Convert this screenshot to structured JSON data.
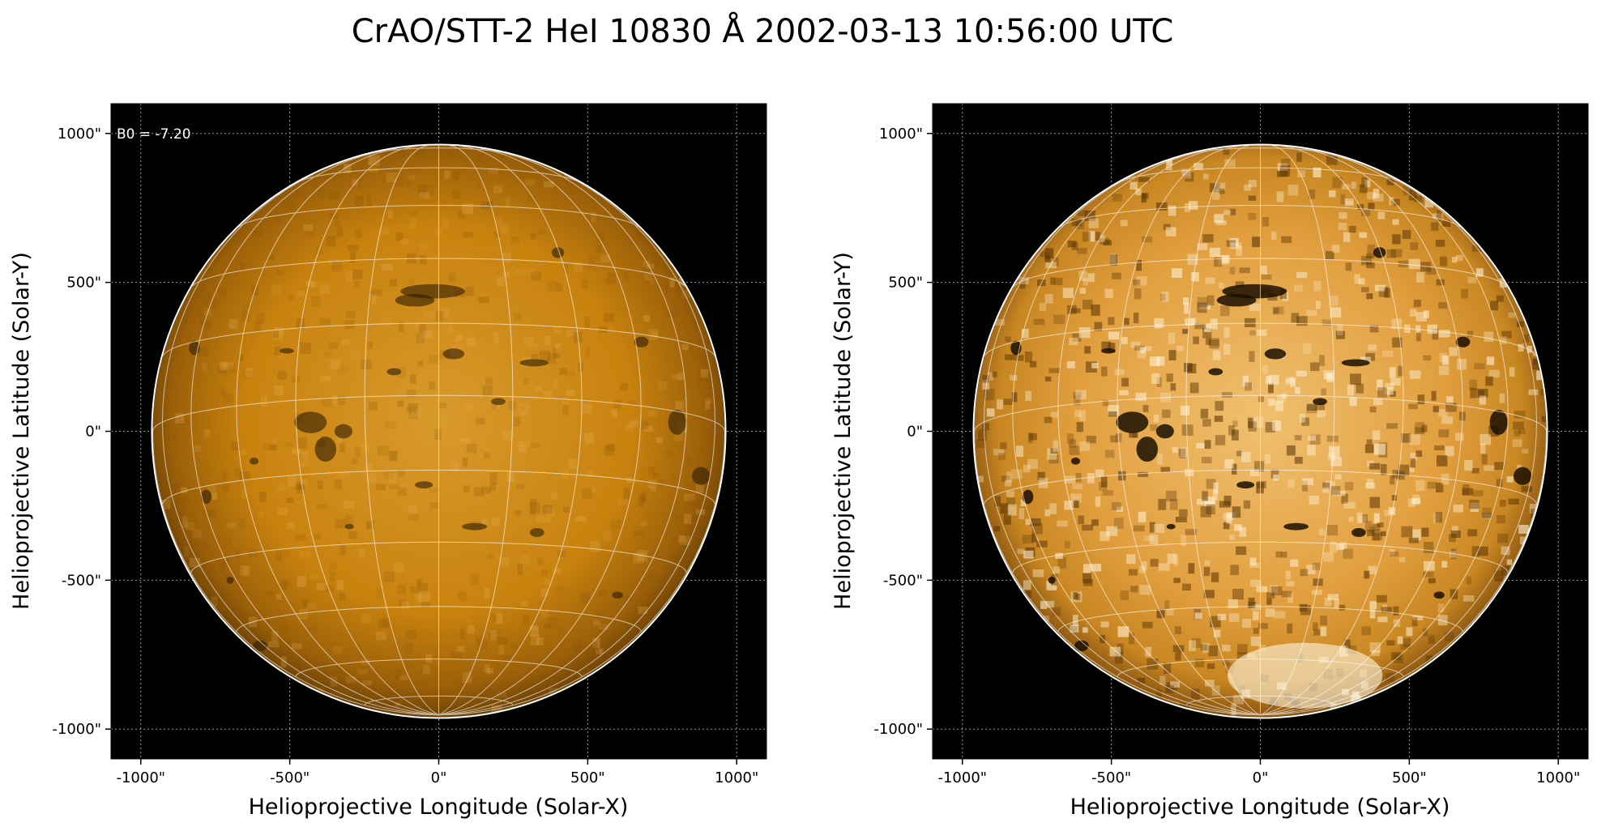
{
  "figure": {
    "title": "CrAO/STT-2 HeI 10830 Å 2002-03-13 10:56:00 UTC",
    "b0_label": "B0 = -7.20",
    "xlabel": "Helioprojective Longitude (Solar-X)",
    "ylabel": "Helioprojective Latitude (Solar-Y)",
    "x_ticks": [
      "-1000\"",
      "-500\"",
      "0\"",
      "500\"",
      "1000\""
    ],
    "y_ticks": [
      "1000\"",
      "500\"",
      "0\"",
      "-500\"",
      "-1000\""
    ],
    "tick_values": [
      -1000,
      -500,
      0,
      500,
      1000
    ],
    "axis_range_arcsec": [
      -1100,
      1100
    ],
    "solar_radius_arcsec": 960,
    "colors": {
      "background": "#000000",
      "disk_left": "#c8820e",
      "disk_right": "#e6a644",
      "grid": "#ffffff"
    },
    "panels": [
      {
        "name": "left-panel",
        "contrast": "normal"
      },
      {
        "name": "right-panel",
        "contrast": "enhanced"
      }
    ]
  }
}
